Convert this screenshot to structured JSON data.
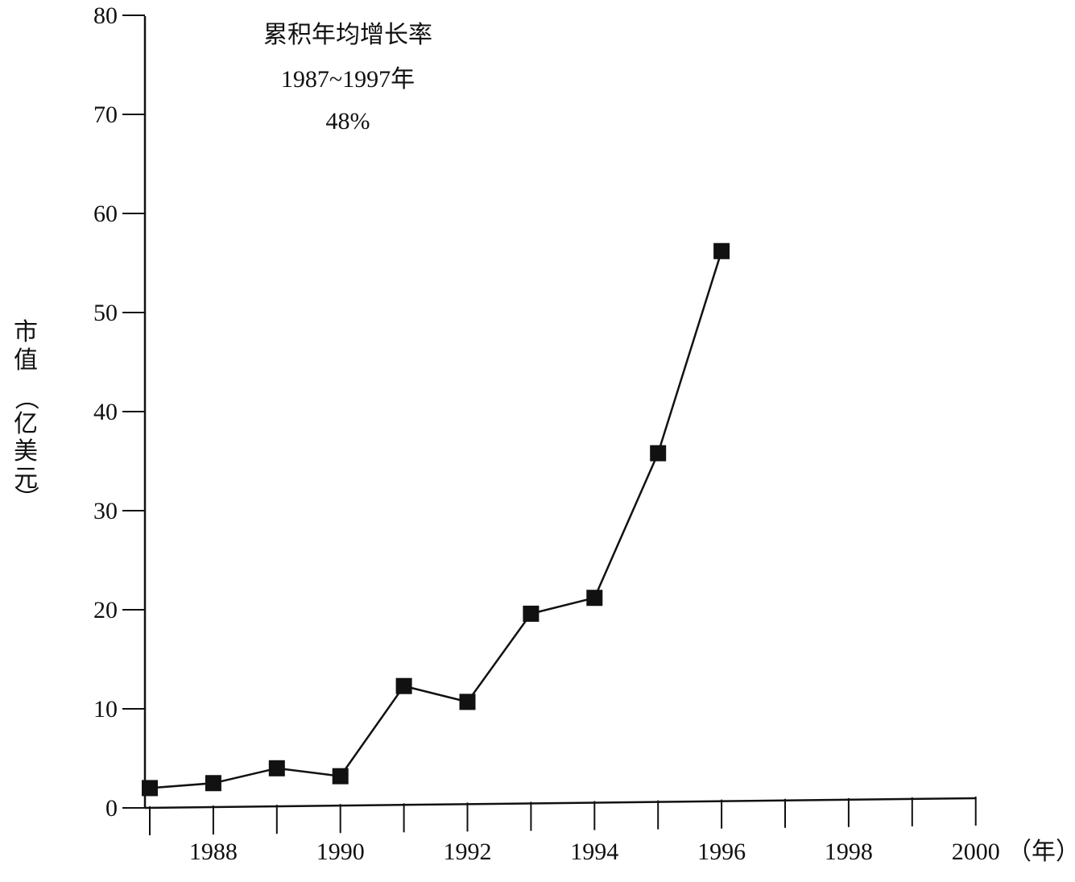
{
  "chart_data": {
    "type": "line",
    "title": "",
    "annotation": [
      "累积年均增长率",
      "1987~1997年",
      "48%"
    ],
    "xlabel": "（年）",
    "ylabel_chars": [
      "市",
      "值",
      "（",
      "亿",
      "美",
      "元",
      "）"
    ],
    "xlim": [
      1987,
      2000
    ],
    "ylim": [
      0,
      80
    ],
    "x_tick_labels": [
      {
        "x": 1988,
        "label": "1988"
      },
      {
        "x": 1990,
        "label": "1990"
      },
      {
        "x": 1992,
        "label": "1992"
      },
      {
        "x": 1994,
        "label": "1994"
      },
      {
        "x": 1996,
        "label": "1996"
      },
      {
        "x": 1998,
        "label": "1998"
      },
      {
        "x": 2000,
        "label": "2000"
      }
    ],
    "x_ticks": [
      1987,
      1988,
      1989,
      1990,
      1991,
      1992,
      1993,
      1994,
      1995,
      1996,
      1997,
      1998,
      1999,
      2000
    ],
    "y_ticks": [
      0,
      10,
      20,
      30,
      40,
      50,
      60,
      70,
      80
    ],
    "grid": false,
    "marker": "square",
    "series": [
      {
        "x": [
          1987,
          1988,
          1989,
          1990,
          1991,
          1992,
          1993,
          1994,
          1995,
          1996
        ],
        "values": [
          2.0,
          2.5,
          4.0,
          3.2,
          12.3,
          10.7,
          19.6,
          21.2,
          35.8,
          56.2
        ]
      }
    ],
    "colors": {
      "line": "#111111",
      "marker": "#111111",
      "axis": "#111111"
    }
  }
}
